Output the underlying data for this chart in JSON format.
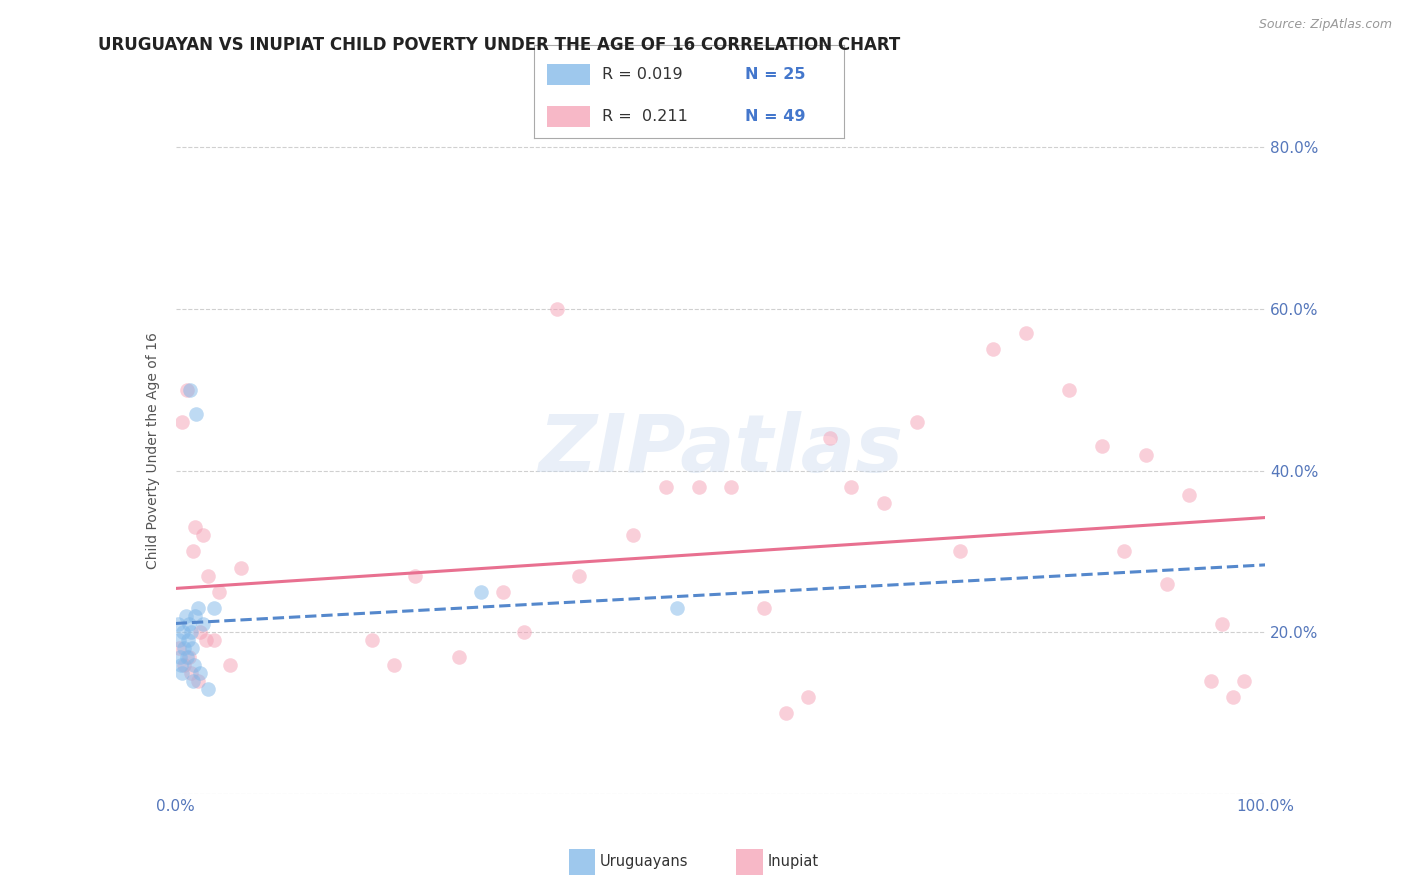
{
  "title": "URUGUAYAN VS INUPIAT CHILD POVERTY UNDER THE AGE OF 16 CORRELATION CHART",
  "source": "Source: ZipAtlas.com",
  "ylabel": "Child Poverty Under the Age of 16",
  "xlim": [
    0,
    1.0
  ],
  "ylim": [
    0,
    0.85
  ],
  "background_color": "#ffffff",
  "grid_color": "#d0d0d0",
  "watermark": "ZIPatlas",
  "uruguayan_color": "#7EB6E8",
  "inupiat_color": "#F5A0B5",
  "uruguayan_line_color": "#5588CC",
  "inupiat_line_color": "#E87090",
  "legend_R_uruguayan": "R = 0.019",
  "legend_N_uruguayan": "N = 25",
  "legend_R_inupiat": "R =  0.211",
  "legend_N_inupiat": "N = 49",
  "uruguayan_x": [
    0.002,
    0.003,
    0.004,
    0.005,
    0.006,
    0.007,
    0.008,
    0.009,
    0.01,
    0.011,
    0.012,
    0.013,
    0.014,
    0.015,
    0.016,
    0.017,
    0.018,
    0.019,
    0.02,
    0.022,
    0.025,
    0.03,
    0.035,
    0.28,
    0.46
  ],
  "uruguayan_y": [
    0.21,
    0.19,
    0.17,
    0.16,
    0.15,
    0.2,
    0.18,
    0.22,
    0.17,
    0.19,
    0.21,
    0.5,
    0.2,
    0.18,
    0.14,
    0.16,
    0.22,
    0.47,
    0.23,
    0.15,
    0.21,
    0.13,
    0.23,
    0.25,
    0.23
  ],
  "inupiat_x": [
    0.003,
    0.006,
    0.008,
    0.01,
    0.012,
    0.014,
    0.016,
    0.018,
    0.02,
    0.022,
    0.025,
    0.028,
    0.03,
    0.035,
    0.04,
    0.05,
    0.06,
    0.18,
    0.2,
    0.22,
    0.26,
    0.3,
    0.32,
    0.35,
    0.37,
    0.42,
    0.45,
    0.48,
    0.51,
    0.54,
    0.56,
    0.58,
    0.6,
    0.62,
    0.65,
    0.68,
    0.72,
    0.75,
    0.78,
    0.82,
    0.85,
    0.87,
    0.89,
    0.91,
    0.93,
    0.95,
    0.96,
    0.97,
    0.98
  ],
  "inupiat_y": [
    0.18,
    0.46,
    0.16,
    0.5,
    0.17,
    0.15,
    0.3,
    0.33,
    0.14,
    0.2,
    0.32,
    0.19,
    0.27,
    0.19,
    0.25,
    0.16,
    0.28,
    0.19,
    0.16,
    0.27,
    0.17,
    0.25,
    0.2,
    0.6,
    0.27,
    0.32,
    0.38,
    0.38,
    0.38,
    0.23,
    0.1,
    0.12,
    0.44,
    0.38,
    0.36,
    0.46,
    0.3,
    0.55,
    0.57,
    0.5,
    0.43,
    0.3,
    0.42,
    0.26,
    0.37,
    0.14,
    0.21,
    0.12,
    0.14
  ],
  "ytick_positions": [
    0.0,
    0.2,
    0.4,
    0.6,
    0.8
  ],
  "ytick_labels_right": [
    "",
    "20.0%",
    "40.0%",
    "60.0%",
    "80.0%"
  ],
  "xtick_positions": [
    0.0,
    0.25,
    0.5,
    0.75,
    1.0
  ],
  "xtick_labels": [
    "0.0%",
    "",
    "",
    "",
    "100.0%"
  ],
  "tick_color": "#5577BB",
  "title_fontsize": 12,
  "axis_label_fontsize": 10,
  "tick_fontsize": 11,
  "marker_size": 110,
  "marker_alpha": 0.5
}
